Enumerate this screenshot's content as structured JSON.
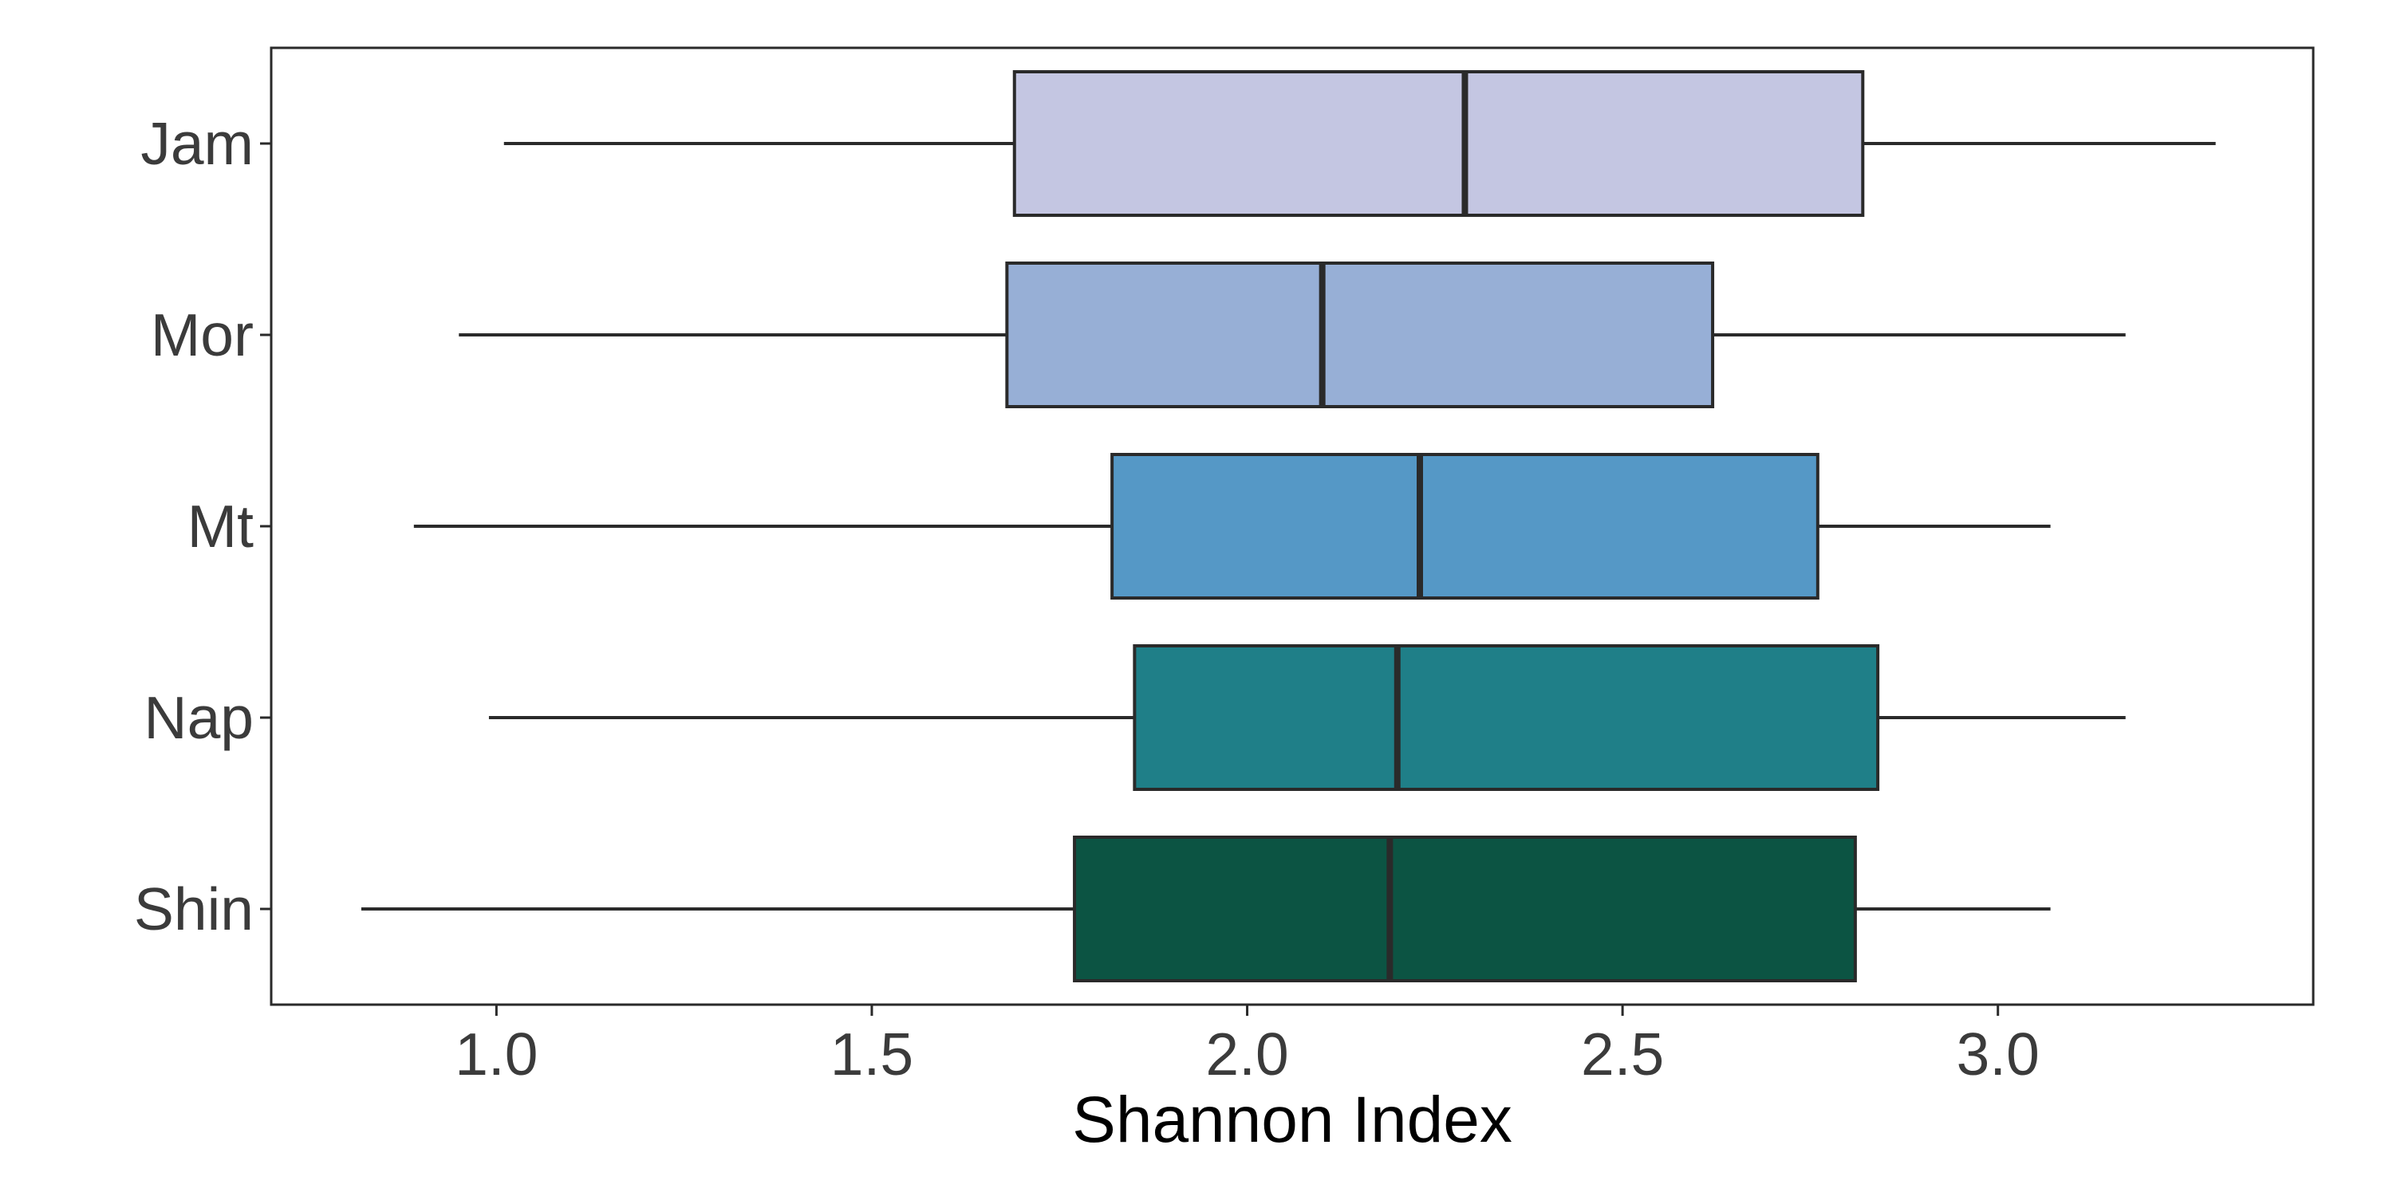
{
  "chart_data": {
    "type": "boxplot",
    "orientation": "horizontal",
    "title": "",
    "xlabel": "Shannon Index",
    "ylabel": "",
    "xlim": [
      0.7,
      3.42
    ],
    "x_ticks": [
      1.0,
      1.5,
      2.0,
      2.5,
      3.0
    ],
    "x_tick_labels": [
      "1.0",
      "1.5",
      "2.0",
      "2.5",
      "3.0"
    ],
    "grid": false,
    "legend": "none",
    "categories": [
      "Jam",
      "Mor",
      "Mt",
      "Nap",
      "Shin"
    ],
    "series": [
      {
        "category": "Jam",
        "min": 1.01,
        "q1": 1.69,
        "median": 2.29,
        "q3": 2.82,
        "max": 3.29,
        "color": "#c4c6e2"
      },
      {
        "category": "Mor",
        "min": 0.95,
        "q1": 1.68,
        "median": 2.1,
        "q3": 2.62,
        "max": 3.17,
        "color": "#97afd6"
      },
      {
        "category": "Mt",
        "min": 0.89,
        "q1": 1.82,
        "median": 2.23,
        "q3": 2.76,
        "max": 3.07,
        "color": "#5598c6"
      },
      {
        "category": "Nap",
        "min": 0.99,
        "q1": 1.85,
        "median": 2.2,
        "q3": 2.84,
        "max": 3.17,
        "color": "#1f7f88"
      },
      {
        "category": "Shin",
        "min": 0.82,
        "q1": 1.77,
        "median": 2.19,
        "q3": 2.81,
        "max": 3.07,
        "color": "#0c5443"
      }
    ],
    "colors": {
      "border": "#2a2a2a",
      "axis_text": "#3b3b3b",
      "background": "#ffffff"
    }
  }
}
